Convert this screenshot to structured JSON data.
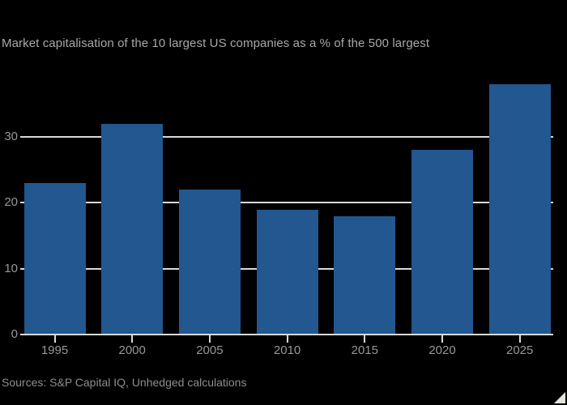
{
  "chart_data": {
    "type": "bar",
    "title": "",
    "subtitle": "Market capitalisation of the 10 largest US companies as a % of the 500 largest",
    "source": "Sources: S&P Capital IQ, Unhedged calculations",
    "categories": [
      "1995",
      "2000",
      "2005",
      "2010",
      "2015",
      "2020",
      "2025"
    ],
    "values": [
      23,
      32,
      22,
      19,
      18,
      28,
      38
    ],
    "xlabel": "",
    "ylabel": "",
    "yticks": [
      0,
      10,
      20,
      30
    ],
    "ylim": [
      0,
      39
    ],
    "legend": "none",
    "grid": "horizontal",
    "colors": {
      "background": "#000000",
      "bar": "#23578f",
      "gridline": "#d9d9d9",
      "axis_text": "#979797",
      "subtitle_text": "#a8a8a8",
      "source_text": "#8d8d8d",
      "resize_handle": "#e8e4da"
    }
  }
}
